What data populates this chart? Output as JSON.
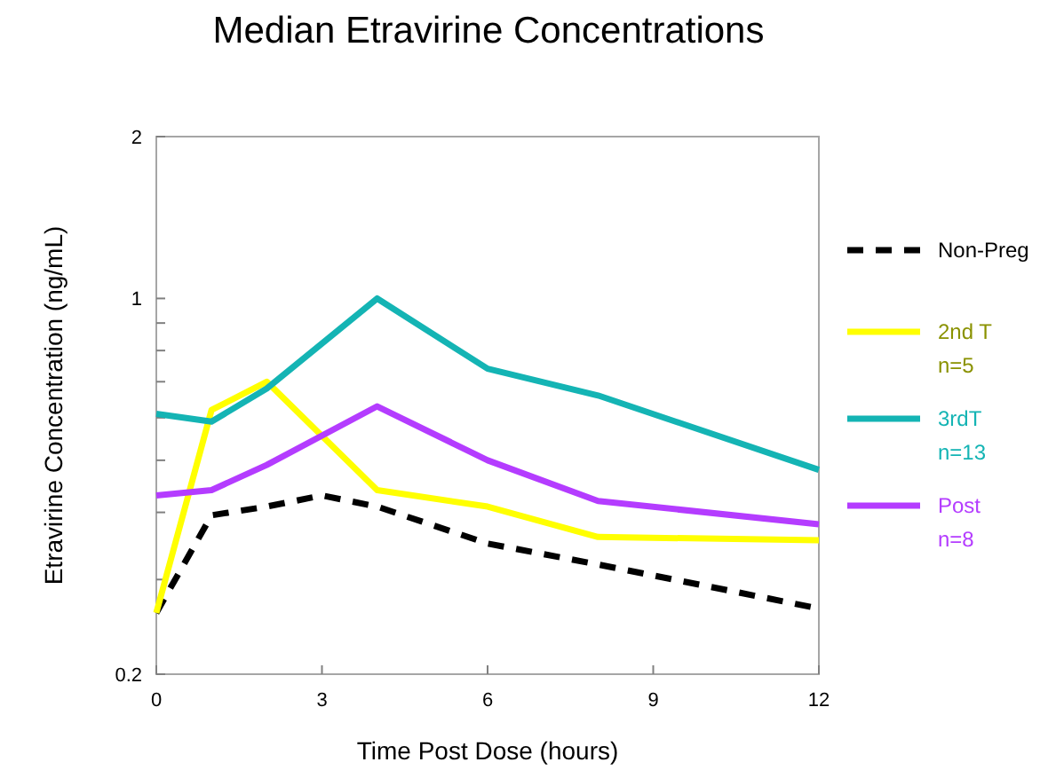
{
  "chart_data": {
    "type": "line",
    "title": "Median Etravirine Concentrations",
    "xlabel": "Time Post Dose (hours)",
    "ylabel": "Etravirine Concentration (ng/mL)",
    "log": "y",
    "xlim": [
      0,
      12
    ],
    "xticks": [
      0,
      3,
      6,
      9,
      12
    ],
    "ylim": [
      0.2,
      2
    ],
    "yticks": [
      0.2,
      {
        "value": 0.3,
        "label": null
      },
      {
        "value": 0.4,
        "label": null
      },
      {
        "value": 0.5,
        "label": null
      },
      {
        "value": 0.6,
        "label": null
      },
      {
        "value": 0.7,
        "label": null
      },
      {
        "value": 0.8,
        "label": null
      },
      {
        "value": 0.9,
        "label": null
      },
      1,
      2
    ],
    "grid": false,
    "legend": "right",
    "marker": "none",
    "x": [
      0,
      1,
      2,
      3,
      4,
      6,
      8,
      12
    ],
    "series": [
      {
        "name": "Non-Preg",
        "color": "#000000",
        "line_style": "dashed",
        "values": [
          0.26,
          0.395,
          0.41,
          0.43,
          0.41,
          0.35,
          0.32,
          0.265
        ]
      },
      {
        "name": "2nd T\nn=5",
        "color": "#ffff00",
        "x": [
          0,
          1,
          2,
          4,
          6,
          8,
          12
        ],
        "values": [
          0.26,
          0.62,
          0.7,
          0.44,
          0.41,
          0.36,
          0.355
        ]
      },
      {
        "name": "3rdT\nn=13",
        "color": "#14b4b4",
        "x": [
          0,
          1,
          2,
          4,
          6,
          8,
          12
        ],
        "values": [
          0.61,
          0.59,
          0.68,
          1.0,
          0.74,
          0.66,
          0.48
        ]
      },
      {
        "name": "Post\nn=8",
        "color": "#b43cff",
        "x": [
          0,
          1,
          2,
          4,
          6,
          8,
          12
        ],
        "values": [
          0.43,
          0.44,
          0.49,
          0.63,
          0.5,
          0.42,
          0.38
        ]
      }
    ]
  }
}
